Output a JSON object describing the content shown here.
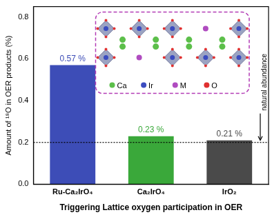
{
  "chart_data": {
    "type": "bar",
    "categories": [
      "Ru-Ca₂IrO₄",
      "Ca₂IrO₄",
      "IrO₂"
    ],
    "values": [
      0.57,
      0.23,
      0.21
    ],
    "value_labels": [
      "0.57 %",
      "0.23 %",
      "0.21 %"
    ],
    "colors": [
      "#3d4db7",
      "#3aa83a",
      "#4a4a4a"
    ],
    "data_labels": true,
    "y_label": "Amount of ¹⁸O in OER products (%)",
    "x_label": "Triggering Lattice oxygen participation in OER",
    "ylim": [
      0,
      0.85
    ],
    "yticks": [
      {
        "value": 0,
        "label": "0.0"
      },
      0.2,
      0.4,
      0.6,
      0.8
    ],
    "grid": false,
    "reference_line": {
      "value": 0.2,
      "label": "natural abundance"
    },
    "inset": {
      "labels": [
        "Ca",
        "Ir",
        "M",
        "O"
      ]
    }
  }
}
